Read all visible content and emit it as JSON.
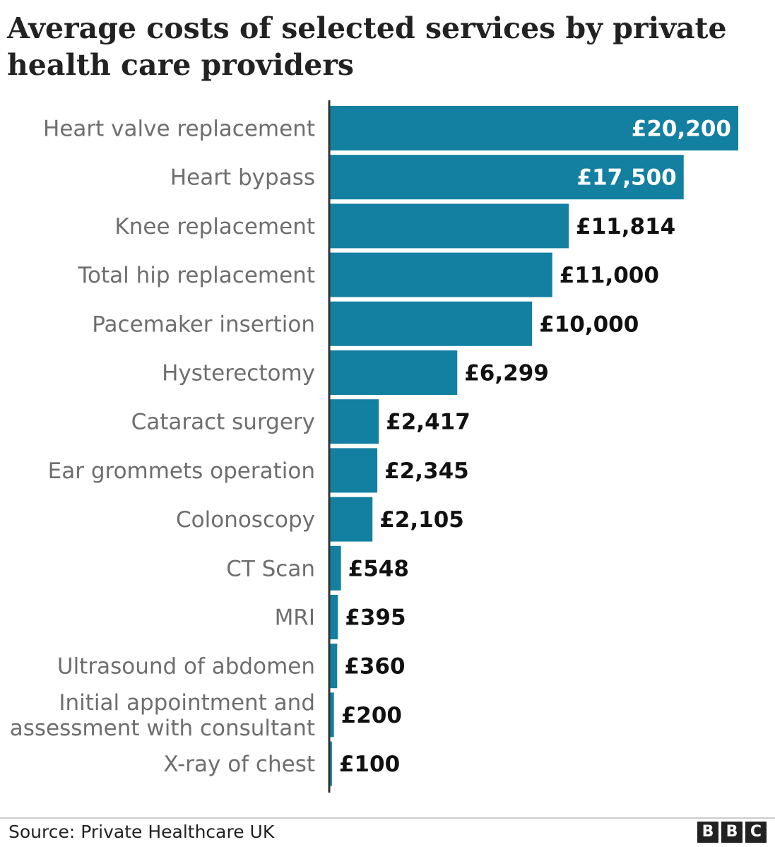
{
  "chart_data": {
    "type": "bar",
    "orientation": "horizontal",
    "title": "Average costs of selected services by private health care providers",
    "categories": [
      "Heart valve replacement",
      "Heart bypass",
      "Knee replacement",
      "Total hip replacement",
      "Pacemaker insertion",
      "Hysterectomy",
      "Cataract surgery",
      "Ear grommets operation",
      "Colonoscopy",
      "CT Scan",
      "MRI",
      "Ultrasound of abdomen",
      "Initial appointment and assessment with consultant",
      "X-ray of chest"
    ],
    "category_lines": [
      [
        "Heart valve replacement"
      ],
      [
        "Heart bypass"
      ],
      [
        "Knee replacement"
      ],
      [
        "Total hip replacement"
      ],
      [
        "Pacemaker insertion"
      ],
      [
        "Hysterectomy"
      ],
      [
        "Cataract surgery"
      ],
      [
        "Ear grommets operation"
      ],
      [
        "Colonoscopy"
      ],
      [
        "CT Scan"
      ],
      [
        "MRI"
      ],
      [
        "Ultrasound of abdomen"
      ],
      [
        "Initial appointment and",
        "assessment with consultant"
      ],
      [
        "X-ray of chest"
      ]
    ],
    "values": [
      20200,
      17500,
      11814,
      11000,
      10000,
      6299,
      2417,
      2345,
      2105,
      548,
      395,
      360,
      200,
      100
    ],
    "value_labels": [
      "£20,200",
      "£17,500",
      "£11,814",
      "£11,000",
      "£10,000",
      "£6,299",
      "£2,417",
      "£2,345",
      "£2,105",
      "£548",
      "£395",
      "£360",
      "£200",
      "£100"
    ],
    "labels_inside": [
      true,
      true,
      false,
      false,
      false,
      false,
      false,
      false,
      false,
      false,
      false,
      false,
      false,
      false
    ],
    "xlim": [
      0,
      20200
    ],
    "xlabel": "",
    "ylabel": "",
    "grid": false,
    "bar_color": "#1380a1",
    "axis_color": "#333333"
  },
  "footer": {
    "source": "Source: Private Healthcare UK",
    "logo_letters": [
      "B",
      "B",
      "C"
    ]
  }
}
